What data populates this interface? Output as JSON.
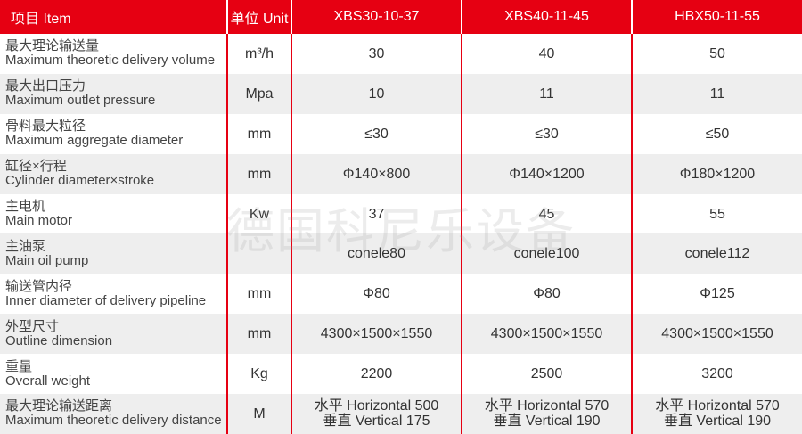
{
  "header": [
    "项目  Item",
    "单位 Unit",
    "XBS30-10-37",
    "XBS40-11-45",
    "HBX50-11-55"
  ],
  "rows": [
    {
      "cn": "最大理论输送量",
      "en": "Maximum theoretic delivery volume",
      "unit": "m³/h",
      "v": [
        "30",
        "40",
        "50"
      ]
    },
    {
      "cn": "最大出口压力",
      "en": "Maximum outlet pressure",
      "unit": "Mpa",
      "v": [
        "10",
        "11",
        "11"
      ]
    },
    {
      "cn": "骨料最大粒径",
      "en": "Maximum aggregate diameter",
      "unit": "mm",
      "v": [
        "≤30",
        "≤30",
        "≤50"
      ]
    },
    {
      "cn": "缸径×行程",
      "en": "Cylinder diameter×stroke",
      "unit": "mm",
      "v": [
        "Φ140×800",
        "Φ140×1200",
        "Φ180×1200"
      ]
    },
    {
      "cn": "主电机",
      "en": "Main motor",
      "unit": "Kw",
      "v": [
        "37",
        "45",
        "55"
      ]
    },
    {
      "cn": "主油泵",
      "en": "Main oil pump",
      "unit": "",
      "v": [
        "conele80",
        "conele100",
        "conele112"
      ]
    },
    {
      "cn": "输送管内径",
      "en": "Inner diameter of delivery pipeline",
      "unit": "mm",
      "v": [
        "Φ80",
        "Φ80",
        "Φ125"
      ]
    },
    {
      "cn": "外型尺寸",
      "en": "Outline dimension",
      "unit": "mm",
      "v": [
        "4300×1500×1550",
        "4300×1500×1550",
        "4300×1500×1550"
      ]
    },
    {
      "cn": "重量",
      "en": "Overall weight",
      "unit": "Kg",
      "v": [
        "2200",
        "2500",
        "3200"
      ]
    },
    {
      "cn": "最大理论输送距离",
      "en": "Maximum theoretic delivery distance",
      "unit": "M",
      "v": [
        "水平 Horizontal 500\n垂直 Vertical 175",
        "水平 Horizontal 570\n垂直 Vertical 190",
        "水平 Horizontal 570\n垂直 Vertical 190"
      ]
    }
  ],
  "watermark": "德国科尼乐设备",
  "colors": {
    "header": "#e60012",
    "stripe": "#eeeeee"
  }
}
